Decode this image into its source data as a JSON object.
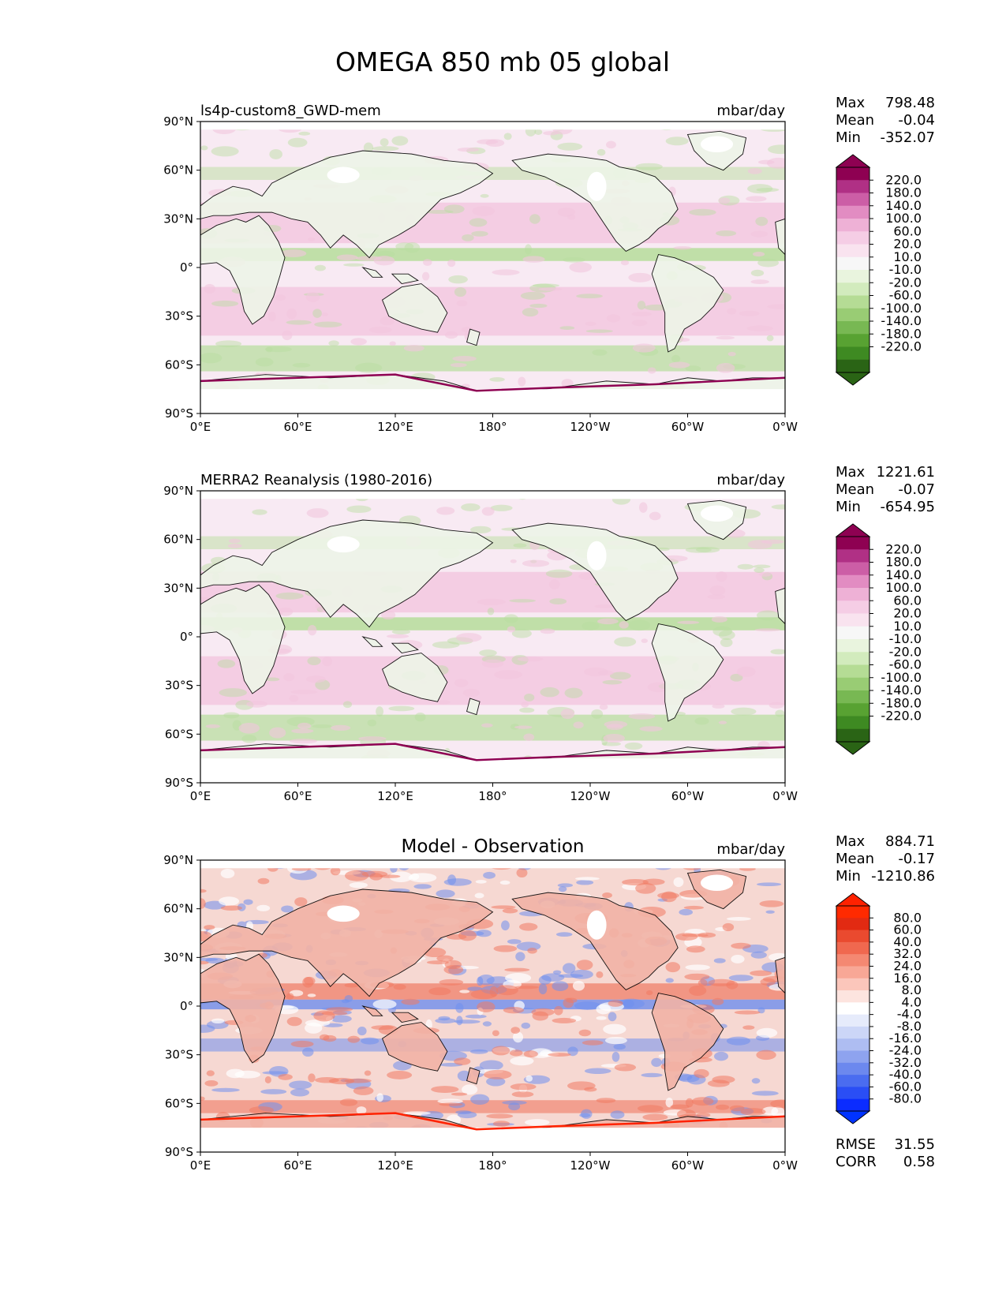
{
  "title": "OMEGA 850 mb 05 global",
  "x_ticks": [
    "0°E",
    "60°E",
    "120°E",
    "180°",
    "120°W",
    "60°W",
    "0°W"
  ],
  "y_ticks": [
    "90°N",
    "60°N",
    "30°N",
    "0°",
    "30°S",
    "60°S",
    "90°S"
  ],
  "panels": [
    {
      "name": "model",
      "left_title": "ls4p-custom8_GWD-mem",
      "center_title": "",
      "units": "mbar/day",
      "stats": {
        "max_label": "Max",
        "max": "798.48",
        "mean_label": "Mean",
        "mean": "-0.04",
        "min_label": "Min",
        "min": "-352.07"
      },
      "colorbar": {
        "labels": [
          "220.0",
          "180.0",
          "140.0",
          "100.0",
          "60.0",
          "20.0",
          "10.0",
          "-10.0",
          "-20.0",
          "-60.0",
          "-100.0",
          "-140.0",
          "-180.0",
          "-220.0"
        ],
        "colors": [
          "#2a6415",
          "#3e8a22",
          "#58a232",
          "#78b853",
          "#99cc74",
          "#b5dc95",
          "#d2ebbd",
          "#e9f4de",
          "#f7f7f7",
          "#f9e3ef",
          "#f5cde5",
          "#eeb1d6",
          "#e28cc2",
          "#cc5ea6",
          "#b03085",
          "#8e0152"
        ],
        "extend_low_color": "#2a6415",
        "extend_high_color": "#8e0152"
      }
    },
    {
      "name": "observation",
      "left_title": "MERRA2 Reanalysis (1980-2016)",
      "center_title": "",
      "units": "mbar/day",
      "stats": {
        "max_label": "Max",
        "max": "1221.61",
        "mean_label": "Mean",
        "mean": "-0.07",
        "min_label": "Min",
        "min": "-654.95"
      },
      "colorbar": {
        "labels": [
          "220.0",
          "180.0",
          "140.0",
          "100.0",
          "60.0",
          "20.0",
          "10.0",
          "-10.0",
          "-20.0",
          "-60.0",
          "-100.0",
          "-140.0",
          "-180.0",
          "-220.0"
        ],
        "colors": [
          "#2a6415",
          "#3e8a22",
          "#58a232",
          "#78b853",
          "#99cc74",
          "#b5dc95",
          "#d2ebbd",
          "#e9f4de",
          "#f7f7f7",
          "#f9e3ef",
          "#f5cde5",
          "#eeb1d6",
          "#e28cc2",
          "#cc5ea6",
          "#b03085",
          "#8e0152"
        ],
        "extend_low_color": "#2a6415",
        "extend_high_color": "#8e0152"
      }
    },
    {
      "name": "difference",
      "left_title": "",
      "center_title": "Model - Observation",
      "units": "mbar/day",
      "stats": {
        "max_label": "Max",
        "max": "884.71",
        "mean_label": "Mean",
        "mean": "-0.17",
        "min_label": "Min",
        "min": "-1210.86"
      },
      "extra": {
        "rmse_label": "RMSE",
        "rmse": "31.55",
        "corr_label": "CORR",
        "corr": "0.58"
      },
      "colorbar": {
        "labels": [
          "80.0",
          "60.0",
          "40.0",
          "32.0",
          "24.0",
          "16.0",
          "8.0",
          "4.0",
          "-4.0",
          "-8.0",
          "-16.0",
          "-24.0",
          "-32.0",
          "-40.0",
          "-60.0",
          "-80.0"
        ],
        "colors": [
          "#0b2cff",
          "#2a4ef5",
          "#4a6cf0",
          "#6c88ee",
          "#8ea3ef",
          "#aebdf2",
          "#ccd6f7",
          "#e6ebfb",
          "#ffffff",
          "#fde4df",
          "#fbc6bb",
          "#f8a796",
          "#f48872",
          "#f0684f",
          "#ea4a2f",
          "#e22a12",
          "#ff2a00"
        ],
        "extend_low_color": "#0033ff",
        "extend_high_color": "#ff2200"
      }
    }
  ],
  "legend_colors": {
    "pink": "#f2c6de",
    "green": "#b9dea0",
    "magenta": "#8e0152",
    "red": "#f07a63",
    "blue": "#6f8fee"
  }
}
